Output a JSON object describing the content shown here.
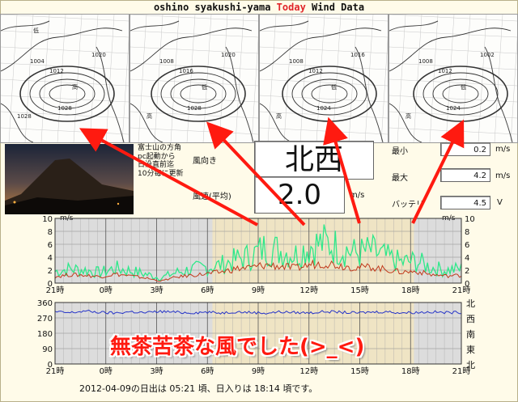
{
  "header": {
    "title_prefix": "oshino syakushi-yama ",
    "title_today": "Today",
    "title_suffix": " Wind Data"
  },
  "maps": [
    {
      "labels": [
        "1004",
        "1012",
        "1020",
        "1028",
        "1028",
        "高",
        "低"
      ]
    },
    {
      "labels": [
        "1008",
        "1016",
        "1020",
        "1028",
        "高",
        "低"
      ]
    },
    {
      "labels": [
        "1008",
        "1012",
        "1016",
        "1024",
        "高",
        "低"
      ]
    },
    {
      "labels": [
        "1008",
        "1012",
        "1002",
        "1024",
        "高",
        "低"
      ]
    }
  ],
  "info": {
    "note_lines": [
      "富士山の方角",
      "pc起動から",
      "日没直前迄",
      "10分毎に更新"
    ],
    "dir_label": "風向き",
    "dir_value": "北西",
    "speed_label": "風速(平均)",
    "speed_value": "2.0",
    "speed_unit": "m/s",
    "min_label": "最小",
    "min_value": "0.2",
    "min_unit": "m/s",
    "max_label": "最大",
    "max_value": "4.2",
    "max_unit": "m/s",
    "battery_label": "バッテリ",
    "battery_value": "4.5",
    "battery_unit": "V"
  },
  "chart_data": [
    {
      "type": "line",
      "ylabel": "m/s",
      "ylim": [
        0,
        10
      ],
      "yticks": [
        0,
        2,
        4,
        6,
        8,
        10
      ],
      "xticks": [
        "21時",
        "0時",
        "3時",
        "6時",
        "9時",
        "12時",
        "15時",
        "18時",
        "21時"
      ],
      "series": [
        {
          "name": "",
          "color": "#2ee88a",
          "values": [
            1.8,
            2.2,
            2.0,
            1.6,
            2.3,
            1.9,
            1.4,
            0.8,
            1.6,
            2.1,
            2.4,
            2.8,
            3.6,
            4.2,
            5.5,
            5.0,
            4.4,
            5.8,
            6.2,
            5.4,
            4.6,
            5.0,
            4.0,
            3.2,
            3.4,
            2.4,
            2.0,
            2.2
          ]
        },
        {
          "name": "",
          "color": "#c0391b",
          "values": [
            1.0,
            1.3,
            1.2,
            1.0,
            1.4,
            1.1,
            0.8,
            0.3,
            0.9,
            1.2,
            1.4,
            1.7,
            2.2,
            2.4,
            2.8,
            2.6,
            2.3,
            2.9,
            3.1,
            2.7,
            2.4,
            2.5,
            2.1,
            1.7,
            1.8,
            1.3,
            1.1,
            1.2
          ]
        }
      ]
    },
    {
      "type": "line",
      "ylim": [
        0,
        360
      ],
      "yticks": [
        0,
        90,
        180,
        270,
        360
      ],
      "right_labels": [
        "北",
        "西",
        "南",
        "東",
        "北"
      ],
      "xticks": [
        "21時",
        "0時",
        "3時",
        "6時",
        "9時",
        "12時",
        "15時",
        "18時",
        "21時"
      ],
      "series": [
        {
          "name": "",
          "color": "#2533c8",
          "values": [
            305,
            300,
            310,
            302,
            298,
            306,
            300,
            308,
            303,
            300,
            304,
            299,
            306,
            302,
            298,
            305,
            301,
            300,
            307,
            303,
            299,
            304,
            306,
            300,
            302,
            305,
            301,
            303
          ]
        }
      ]
    }
  ],
  "banner": "無茶苦茶な風でした(>_<)",
  "footer": "2012-04-09の日出は  05:21  頃、日入りは  18:14  頃です。"
}
